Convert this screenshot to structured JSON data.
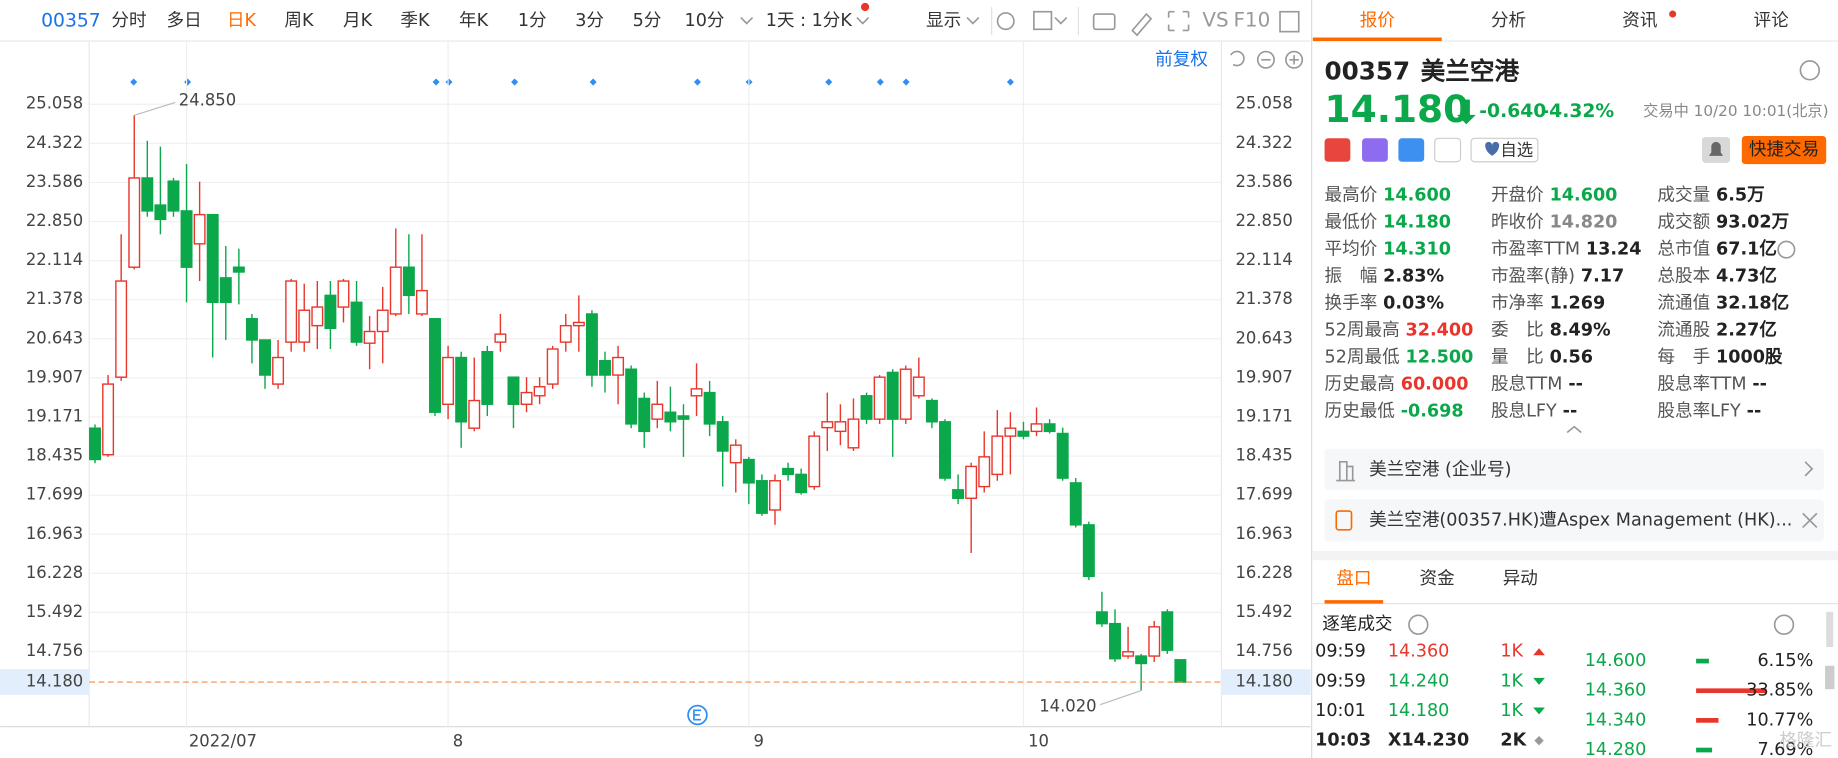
{
  "toolbar": {
    "code": "00357",
    "tabs": [
      "分时",
      "多日",
      "日K",
      "周K",
      "月K",
      "季K",
      "年K",
      "1分",
      "3分",
      "5分",
      "10分"
    ],
    "active": 2,
    "period": "1天 : 1分K",
    "display": "显示",
    "tools": [
      "VS",
      "F10"
    ]
  },
  "chart_header": "前复权",
  "chart_data": {
    "type": "candlestick",
    "up_color": "#e8362c",
    "down_color": "#0aa84a",
    "categories": [
      null,
      null,
      null,
      null,
      null,
      null,
      null,
      "2022/07",
      null,
      null,
      null,
      null,
      null,
      null,
      null,
      null,
      null,
      null,
      null,
      null,
      null,
      null,
      null,
      null,
      null,
      null,
      null,
      "8",
      null,
      null,
      null,
      null,
      null,
      null,
      null,
      null,
      null,
      null,
      null,
      null,
      null,
      null,
      null,
      null,
      null,
      null,
      null,
      null,
      null,
      null,
      "9",
      null,
      null,
      null,
      null,
      null,
      null,
      null,
      null,
      null,
      null,
      null,
      null,
      null,
      null,
      null,
      null,
      null,
      null,
      null,
      null,
      "10",
      null,
      null,
      null,
      null,
      null,
      null,
      null,
      null,
      null,
      null,
      null,
      null
    ],
    "open": [
      18.96,
      18.46,
      19.92,
      21.99,
      23.67,
      23.16,
      23.61,
      23.05,
      22.43,
      22.98,
      21.79,
      21.99,
      21.02,
      20.62,
      19.79,
      20.58,
      20.58,
      20.89,
      21.46,
      21.24,
      21.33,
      20.56,
      20.78,
      21.11,
      21.99,
      21.11,
      21.02,
      19.41,
      20.29,
      18.96,
      20.4,
      20.58,
      19.92,
      19.41,
      19.57,
      19.79,
      20.58,
      20.89,
      21.11,
      20.23,
      19.96,
      20.07,
      19.52,
      19.13,
      19.26,
      19.19,
      19.57,
      19.63,
      19.08,
      18.31,
      18.37,
      17.97,
      17.42,
      18.2,
      18.09,
      17.86,
      18.97,
      18.9,
      18.59,
      19.57,
      19.13,
      20.01,
      19.13,
      19.57,
      19.48,
      19.08,
      17.8,
      17.64,
      17.86,
      18.09,
      18.81,
      18.9,
      18.9,
      19.04,
      18.86,
      17.93,
      17.14,
      15.5,
      15.28,
      14.67,
      14.67,
      14.67,
      15.5,
      14.6
    ],
    "high": [
      19.03,
      19.96,
      22.61,
      24.85,
      24.37,
      24.26,
      23.67,
      23.93,
      23.6,
      22.98,
      22.39,
      22.34,
      21.11,
      20.62,
      20.62,
      21.77,
      21.68,
      21.73,
      21.73,
      21.77,
      21.73,
      21.07,
      21.62,
      22.72,
      22.61,
      22.61,
      21.02,
      20.51,
      20.4,
      20.29,
      20.51,
      21.11,
      19.92,
      19.92,
      19.92,
      20.51,
      21.11,
      21.46,
      21.18,
      20.4,
      20.51,
      20.14,
      19.63,
      19.85,
      19.74,
      19.41,
      20.18,
      19.85,
      19.19,
      18.75,
      18.42,
      18.09,
      18.09,
      18.31,
      18.2,
      18.9,
      19.63,
      19.41,
      19.52,
      19.63,
      19.96,
      20.07,
      20.14,
      20.29,
      19.52,
      19.13,
      18.09,
      18.31,
      18.9,
      19.3,
      19.26,
      19.08,
      19.35,
      19.13,
      18.97,
      18.02,
      17.2,
      15.88,
      15.55,
      15.22,
      14.71,
      15.33,
      15.55,
      14.6
    ],
    "low": [
      18.3,
      18.42,
      19.85,
      21.95,
      22.94,
      22.61,
      22.94,
      21.33,
      21.73,
      20.29,
      20.62,
      21.29,
      20.18,
      19.7,
      19.7,
      20.4,
      20.4,
      20.45,
      20.45,
      20.95,
      20.51,
      20.07,
      20.18,
      21.07,
      21.11,
      21.07,
      19.19,
      19.13,
      18.59,
      18.9,
      19.19,
      20.4,
      18.96,
      19.26,
      19.41,
      19.7,
      20.4,
      20.4,
      19.74,
      19.63,
      19.41,
      18.96,
      18.59,
      18.96,
      18.9,
      18.42,
      19.19,
      18.81,
      17.86,
      17.75,
      17.53,
      17.31,
      17.14,
      17.97,
      17.71,
      17.8,
      18.53,
      18.64,
      18.53,
      19.04,
      19.04,
      18.42,
      19.04,
      19.52,
      18.96,
      17.97,
      17.53,
      16.61,
      17.75,
      17.97,
      18.09,
      18.75,
      18.81,
      18.86,
      17.97,
      17.09,
      16.1,
      15.22,
      14.56,
      14.62,
      14.02,
      14.56,
      14.71,
      14.18
    ],
    "close": [
      18.37,
      19.79,
      21.73,
      23.67,
      23.05,
      22.89,
      23.05,
      21.99,
      22.98,
      21.33,
      21.33,
      21.9,
      20.62,
      19.96,
      20.29,
      21.73,
      21.18,
      21.24,
      20.84,
      21.73,
      20.58,
      20.78,
      21.18,
      21.99,
      21.46,
      21.55,
      19.26,
      20.29,
      19.08,
      19.48,
      19.41,
      20.73,
      19.41,
      19.63,
      19.74,
      20.45,
      20.89,
      20.95,
      19.96,
      19.96,
      20.29,
      19.04,
      18.9,
      19.41,
      19.08,
      19.13,
      19.7,
      19.04,
      18.53,
      18.64,
      17.93,
      17.36,
      17.97,
      18.09,
      17.75,
      18.81,
      19.08,
      19.08,
      19.13,
      19.13,
      19.92,
      19.13,
      20.07,
      19.92,
      19.08,
      18.02,
      17.64,
      18.24,
      18.42,
      18.81,
      18.96,
      18.81,
      19.04,
      18.9,
      18.02,
      17.14,
      16.17,
      15.28,
      14.62,
      14.75,
      14.53,
      15.22,
      14.78,
      14.18
    ],
    "ylim": [
      13.34,
      25.52
    ],
    "yticks": [
      {
        "value": 25.058,
        "label": "25.058"
      },
      {
        "value": 24.322,
        "label": "24.322"
      },
      {
        "value": 23.586,
        "label": "23.586"
      },
      {
        "value": 22.85,
        "label": "22.850"
      },
      {
        "value": 22.114,
        "label": "22.114"
      },
      {
        "value": 21.378,
        "label": "21.378"
      },
      {
        "value": 20.643,
        "label": "20.643"
      },
      {
        "value": 19.907,
        "label": "19.907"
      },
      {
        "value": 19.171,
        "label": "19.171"
      },
      {
        "value": 18.435,
        "label": "18.435"
      },
      {
        "value": 17.699,
        "label": "17.699"
      },
      {
        "value": 16.963,
        "label": "16.963"
      },
      {
        "value": 16.228,
        "label": "16.228"
      },
      {
        "value": 15.492,
        "label": "15.492"
      },
      {
        "value": 14.756,
        "label": "14.756"
      }
    ],
    "last": {
      "value": 14.18,
      "label": "14.180"
    },
    "annotations": [
      {
        "value": 24.85,
        "label": "24.850"
      },
      {
        "value": 14.02,
        "label": "14.020"
      }
    ],
    "grid": true
  },
  "panel": {
    "tabs": [
      "报价",
      "分析",
      "资讯",
      "评论"
    ],
    "active": 0,
    "code": "00357",
    "name": "美兰空港",
    "price": "14.180",
    "change": "-0.640",
    "change_pct": "-4.32%",
    "status": "交易中 10/20 10:01(北京)",
    "watch": "自选",
    "trade": "快捷交易",
    "stats": [
      [
        {
          "label": "最高价",
          "value": "14.600",
          "tone": "down"
        },
        {
          "label": "最低价",
          "value": "14.180",
          "tone": "down"
        },
        {
          "label": "平均价",
          "value": "14.310",
          "tone": "down"
        },
        {
          "label": "振　幅",
          "value": "2.83%"
        },
        {
          "label": "换手率",
          "value": "0.03%"
        },
        {
          "label": "52周最高",
          "value": "32.400",
          "tone": "up"
        },
        {
          "label": "52周最低",
          "value": "12.500",
          "tone": "down"
        },
        {
          "label": "历史最高",
          "value": "60.000",
          "tone": "up"
        },
        {
          "label": "历史最低",
          "value": "-0.698",
          "tone": "down"
        }
      ],
      [
        {
          "label": "开盘价",
          "value": "14.600",
          "tone": "down"
        },
        {
          "label": "昨收价",
          "value": "14.820",
          "tone": "flat"
        },
        {
          "label": "市盈率TTM",
          "value": "13.24"
        },
        {
          "label": "市盈率(静)",
          "value": "7.17"
        },
        {
          "label": "市净率",
          "value": "1.269"
        },
        {
          "label": "委　比",
          "value": "8.49%"
        },
        {
          "label": "量　比",
          "value": "0.56"
        },
        {
          "label": "股息TTM",
          "value": "--"
        },
        {
          "label": "股息LFY",
          "value": "--"
        }
      ],
      [
        {
          "label": "成交量",
          "value": "6.5万"
        },
        {
          "label": "成交额",
          "value": "93.02万"
        },
        {
          "label": "总市值",
          "value": "67.1亿"
        },
        {
          "label": "总股本",
          "value": "4.73亿"
        },
        {
          "label": "流通值",
          "value": "32.18亿"
        },
        {
          "label": "流通股",
          "value": "2.27亿"
        },
        {
          "label": "每　手",
          "value": "1000股"
        },
        {
          "label": "股息率TTM",
          "value": "--"
        },
        {
          "label": "股息率LFY",
          "value": "--"
        }
      ]
    ],
    "company": "美兰空港 (企业号)",
    "news": "美兰空港(00357.HK)遭Aspex Management (HK)...",
    "sub_tabs": [
      "盘口",
      "资金",
      "异动"
    ],
    "sub_active": 0,
    "ticks_title": "逐笔成交",
    "trades": [
      {
        "time": "09:59",
        "price": "14.360",
        "vol": "1K",
        "dir": "up"
      },
      {
        "time": "09:59",
        "price": "14.240",
        "vol": "1K",
        "dir": "down"
      },
      {
        "time": "10:01",
        "price": "14.180",
        "vol": "1K",
        "dir": "down"
      },
      {
        "time": "10:03",
        "price": "X14.230",
        "vol": "2K",
        "dir": "flat"
      }
    ],
    "distribution": [
      {
        "price": "14.600",
        "pct": "6.15%"
      },
      {
        "price": "14.360",
        "pct": "33.85%"
      },
      {
        "price": "14.340",
        "pct": "10.77%"
      },
      {
        "price": "14.280",
        "pct": "7.69%"
      }
    ],
    "watermark": "格隆汇"
  }
}
